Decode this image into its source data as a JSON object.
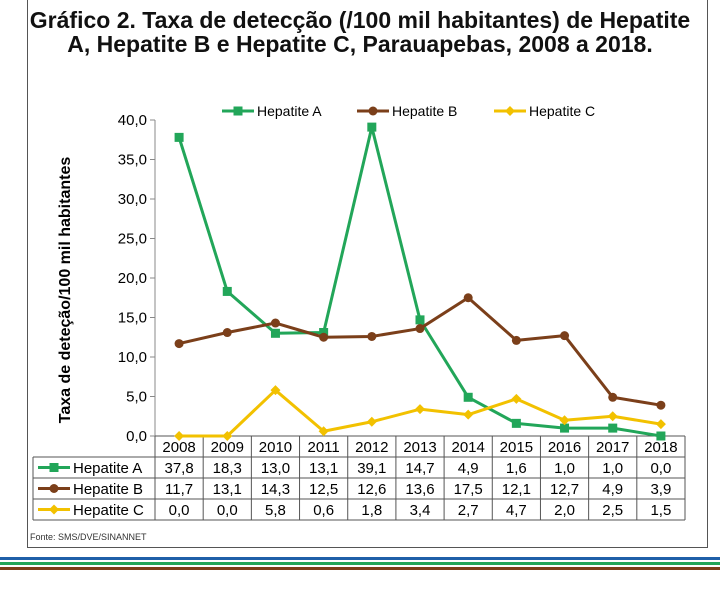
{
  "chart_data": {
    "type": "line",
    "title": "Gráfico 2. Taxa de detecção (/100 mil habitantes) de Hepatite A, Hepatite B e Hepatite C, Parauapebas, 2008 a 2018.",
    "ylabel": "Taxa de deteção/100 mil habitantes",
    "xlabel": "",
    "categories": [
      "2008",
      "2009",
      "2010",
      "2011",
      "2012",
      "2013",
      "2014",
      "2015",
      "2016",
      "2017",
      "2018"
    ],
    "ylim": [
      0,
      40
    ],
    "y_ticks": [
      "0,0",
      "5,0",
      "10,0",
      "15,0",
      "20,0",
      "25,0",
      "30,0",
      "35,0",
      "40,0"
    ],
    "legend_position": "top",
    "data_table": true,
    "series": [
      {
        "name": "Hepatite A",
        "color": "#22a659",
        "marker": "square",
        "values": [
          37.8,
          18.3,
          13.0,
          13.1,
          39.1,
          14.7,
          4.9,
          1.6,
          1.0,
          1.0,
          0.0
        ],
        "labels": [
          "37,8",
          "18,3",
          "13,0",
          "13,1",
          "39,1",
          "14,7",
          "4,9",
          "1,6",
          "1,0",
          "1,0",
          "0,0"
        ]
      },
      {
        "name": "Hepatite B",
        "color": "#7b3f1a",
        "marker": "circle",
        "values": [
          11.7,
          13.1,
          14.3,
          12.5,
          12.6,
          13.6,
          17.5,
          12.1,
          12.7,
          4.9,
          3.9
        ],
        "labels": [
          "11,7",
          "13,1",
          "14,3",
          "12,5",
          "12,6",
          "13,6",
          "17,5",
          "12,1",
          "12,7",
          "4,9",
          "3,9"
        ]
      },
      {
        "name": "Hepatite C",
        "color": "#f2c100",
        "marker": "diamond",
        "values": [
          0.0,
          0.0,
          5.8,
          0.6,
          1.8,
          3.4,
          2.7,
          4.7,
          2.0,
          2.5,
          1.5
        ],
        "labels": [
          "0,0",
          "0,0",
          "5,8",
          "0,6",
          "1,8",
          "3,4",
          "2,7",
          "4,7",
          "2,0",
          "2,5",
          "1,5"
        ]
      }
    ]
  },
  "source_note": "Fonte: SMS/DVE/SINANNET",
  "footer_colors": [
    "#1f5fa8",
    "#22a659",
    "#7b3f1a"
  ]
}
